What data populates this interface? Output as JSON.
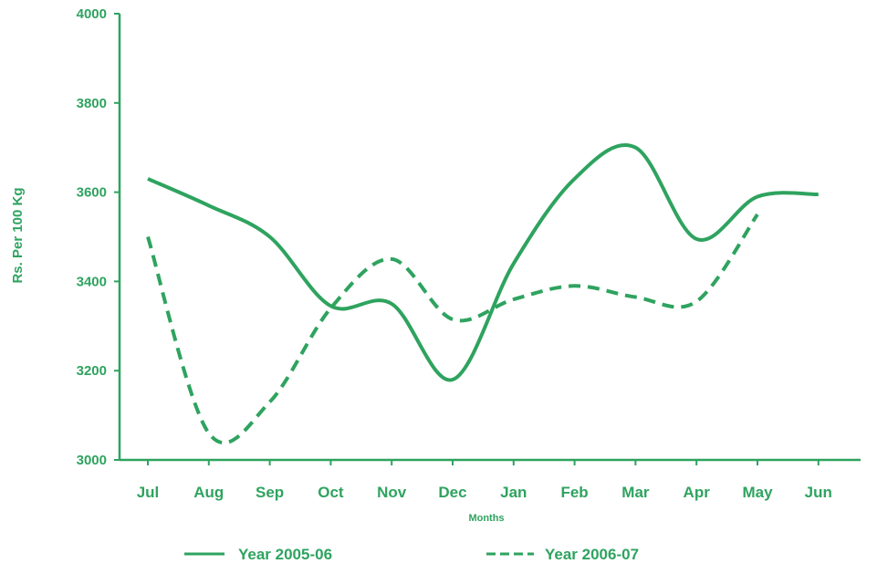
{
  "colors": {
    "accent": "#2ea35f",
    "background": "#ffffff"
  },
  "chart_data": {
    "type": "line",
    "title": "",
    "xlabel": "Months",
    "ylabel": "Rs. Per 100 Kg",
    "categories": [
      "Jul",
      "Aug",
      "Sep",
      "Oct",
      "Nov",
      "Dec",
      "Jan",
      "Feb",
      "Mar",
      "Apr",
      "May",
      "Jun"
    ],
    "ylim": [
      3000,
      4000
    ],
    "yticks": [
      3000,
      3200,
      3400,
      3600,
      3800,
      4000
    ],
    "grid": false,
    "legend_position": "bottom",
    "series": [
      {
        "name": "Year 2005-06",
        "line_style": "solid",
        "values": [
          3630,
          3570,
          3500,
          3345,
          3350,
          3180,
          3440,
          3630,
          3700,
          3495,
          3590,
          3595
        ]
      },
      {
        "name": "Year 2006-07",
        "line_style": "dashed",
        "values": [
          3500,
          3060,
          3130,
          3340,
          3450,
          3315,
          3360,
          3390,
          3365,
          3355,
          3550,
          null
        ]
      }
    ]
  }
}
